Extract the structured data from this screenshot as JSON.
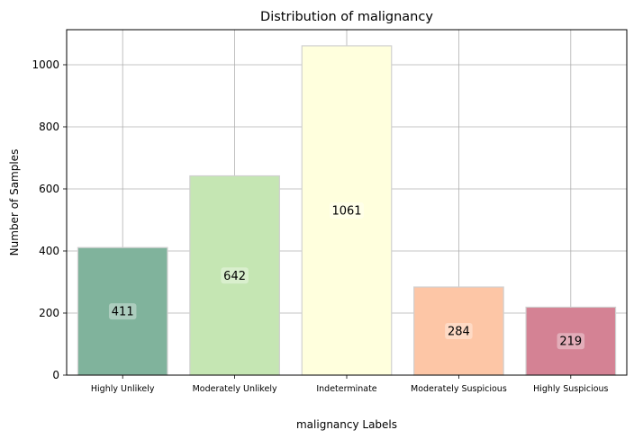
{
  "chart_data": {
    "type": "bar",
    "title": "Distribution of malignancy",
    "xlabel": "malignancy Labels",
    "ylabel": "Number of Samples",
    "categories": [
      "Highly Unlikely",
      "Moderately Unlikely",
      "Indeterminate",
      "Moderately Suspicious",
      "Highly Suspicious"
    ],
    "values": [
      411,
      642,
      1061,
      284,
      219
    ],
    "colors": [
      "#80b39c",
      "#c5e6b3",
      "#ffffdd",
      "#fdc6a6",
      "#d48294"
    ],
    "ylim": [
      0,
      1113
    ],
    "yticks": [
      0,
      200,
      400,
      600,
      800,
      1000
    ],
    "grid": true
  }
}
